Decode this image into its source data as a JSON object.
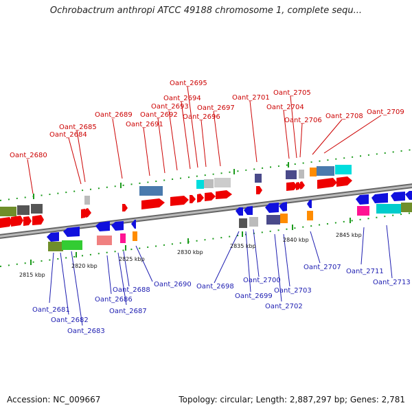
{
  "title": "Ochrobactrum anthropi ATCC 49188 chromosome 1, complete sequ...",
  "footer": {
    "accession": "Accession: NC_009667",
    "summary": "Topology: circular; Length: 2,887,297 bp; Genes: 2,781"
  },
  "kbp_labels": [
    "2815 kbp",
    "2820 kbp",
    "2825 kbp",
    "2830 kbp",
    "2835 kbp",
    "2840 kbp",
    "2845 kbp"
  ],
  "top_genes": [
    "Oant_2680",
    "Oant_2684",
    "Oant_2685",
    "Oant_2689",
    "Oant_2691",
    "Oant_2692",
    "Oant_2693",
    "Oant_2694",
    "Oant_2695",
    "Oant_2696",
    "Oant_2697",
    "Oant_2701",
    "Oant_2704",
    "Oant_2705",
    "Oant_2706",
    "Oant_2708",
    "Oant_2709"
  ],
  "bottom_genes": [
    "Oant_2681",
    "Oant_2682",
    "Oant_2683",
    "Oant_2686",
    "Oant_2687",
    "Oant_2688",
    "Oant_2690",
    "Oant_2698",
    "Oant_2699",
    "Oant_2700",
    "Oant_2702",
    "Oant_2703",
    "Oant_2707",
    "Oant_2711",
    "Oant_2713"
  ],
  "colors": {
    "forward_strand": "#ee0000",
    "reverse_strand": "#1010dd",
    "backbone": "#888888",
    "tick": "#1a9a1a",
    "label_top": "#cc0000",
    "label_bottom": "#1b1bb0"
  }
}
